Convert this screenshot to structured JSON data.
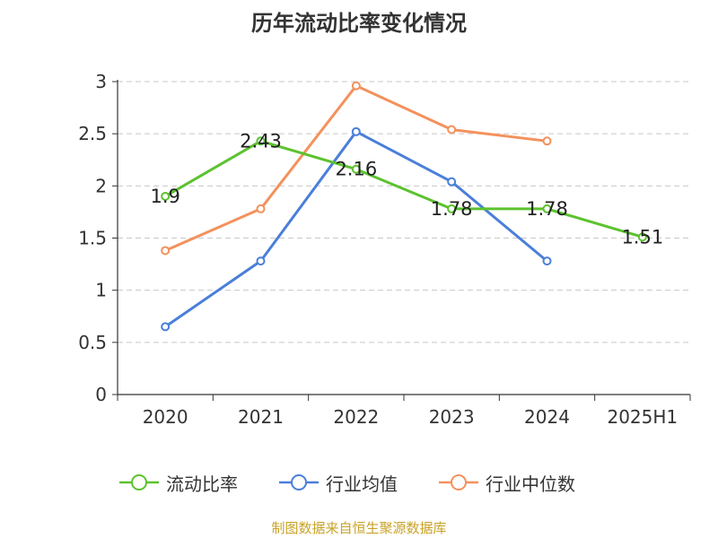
{
  "source": "制图数据来自恒生聚源数据库",
  "chart_data": {
    "type": "line",
    "title": "历年流动比率变化情况",
    "xlabel": "",
    "ylabel": "",
    "categories": [
      "2020",
      "2021",
      "2022",
      "2023",
      "2024",
      "2025H1"
    ],
    "ylim": [
      0,
      3
    ],
    "yticks": [
      0,
      0.5,
      1,
      1.5,
      2,
      2.5,
      3
    ],
    "ytick_labels": [
      "0",
      "0.5",
      "1",
      "1.5",
      "2",
      "2.5",
      "3"
    ],
    "grid": true,
    "legend_position": "bottom",
    "series": [
      {
        "name": "流动比率",
        "color": "#5cc22f",
        "values": [
          1.9,
          2.43,
          2.16,
          1.78,
          1.78,
          1.51
        ],
        "labels": [
          "1.9",
          "2.43",
          "2.16",
          "1.78",
          "1.78",
          "1.51"
        ]
      },
      {
        "name": "行业均值",
        "color": "#4a7fd9",
        "values": [
          0.65,
          1.28,
          2.52,
          2.04,
          1.28,
          null
        ]
      },
      {
        "name": "行业中位数",
        "color": "#f4915c",
        "values": [
          1.38,
          1.78,
          2.96,
          2.54,
          2.43,
          null
        ]
      }
    ]
  }
}
